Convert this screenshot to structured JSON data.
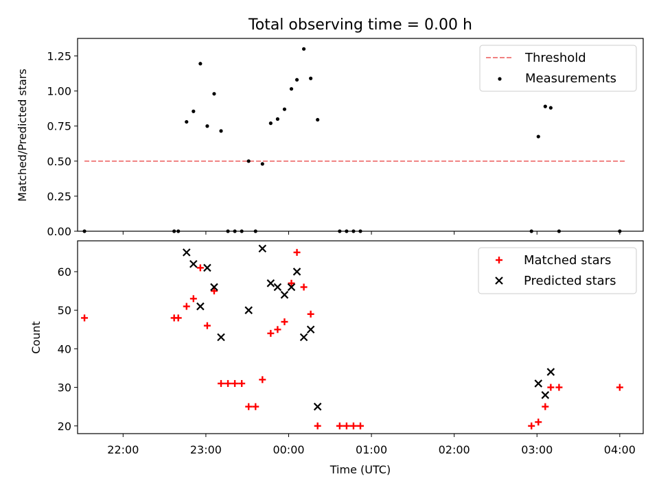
{
  "chart_data": [
    {
      "type": "scatter",
      "title": "Total observing time = 0.00 h",
      "xlabel": "",
      "ylabel": "Matched/Predicted stars",
      "xlim": [
        "21:27",
        "04:17"
      ],
      "ylim": [
        0,
        1.375
      ],
      "yticks": [
        "0.00",
        "0.25",
        "0.50",
        "0.75",
        "1.00",
        "1.25"
      ],
      "ytick_values": [
        0,
        0.25,
        0.5,
        0.75,
        1.0,
        1.25
      ],
      "xtick_values": [
        "22:00",
        "23:00",
        "00:00",
        "01:00",
        "02:00",
        "03:00",
        "04:00"
      ],
      "legend_position": "top-right",
      "colors": {
        "threshold": "#f08080",
        "measurements": "#000000"
      },
      "series": [
        {
          "name": "Threshold",
          "kind": "dashed-line",
          "x": [
            "21:32",
            "04:05"
          ],
          "y": [
            0.5,
            0.5
          ]
        },
        {
          "name": "Measurements",
          "kind": "dots",
          "points": [
            [
              "21:32",
              0.0
            ],
            [
              "22:37",
              0.0
            ],
            [
              "22:40",
              0.0
            ],
            [
              "22:46",
              0.78
            ],
            [
              "22:51",
              0.855
            ],
            [
              "22:56",
              1.195
            ],
            [
              "23:01",
              0.75
            ],
            [
              "23:06",
              0.98
            ],
            [
              "23:11",
              0.715
            ],
            [
              "23:16",
              0.0
            ],
            [
              "23:21",
              0.0
            ],
            [
              "23:26",
              0.0
            ],
            [
              "23:31",
              0.5
            ],
            [
              "23:36",
              0.0
            ],
            [
              "23:41",
              0.48
            ],
            [
              "23:47",
              0.77
            ],
            [
              "23:52",
              0.8
            ],
            [
              "23:57",
              0.87
            ],
            [
              "00:02",
              1.015
            ],
            [
              "00:06",
              1.08
            ],
            [
              "00:11",
              1.3
            ],
            [
              "00:16",
              1.09
            ],
            [
              "00:21",
              0.795
            ],
            [
              "00:37",
              0.0
            ],
            [
              "00:42",
              0.0
            ],
            [
              "00:47",
              0.0
            ],
            [
              "00:52",
              0.0
            ],
            [
              "02:56",
              0.0
            ],
            [
              "03:01",
              0.675
            ],
            [
              "03:06",
              0.89
            ],
            [
              "03:10",
              0.88
            ],
            [
              "03:16",
              0.0
            ],
            [
              "04:00",
              0.0
            ]
          ]
        }
      ]
    },
    {
      "type": "scatter",
      "title": "",
      "xlabel": "Time (UTC)",
      "ylabel": "Count",
      "xlim": [
        "21:27",
        "04:17"
      ],
      "ylim": [
        18,
        68
      ],
      "yticks": [
        "20",
        "30",
        "40",
        "50",
        "60"
      ],
      "ytick_values": [
        20,
        30,
        40,
        50,
        60
      ],
      "xticks": [
        "22:00",
        "23:00",
        "00:00",
        "01:00",
        "02:00",
        "03:00",
        "04:00"
      ],
      "legend_position": "top-right",
      "colors": {
        "matched": "#ff0000",
        "predicted": "#000000"
      },
      "series": [
        {
          "name": "Matched stars",
          "marker": "plus",
          "points": [
            [
              "21:32",
              48
            ],
            [
              "22:37",
              48
            ],
            [
              "22:40",
              48
            ],
            [
              "22:46",
              51
            ],
            [
              "22:51",
              53
            ],
            [
              "22:56",
              61
            ],
            [
              "23:01",
              46
            ],
            [
              "23:06",
              55
            ],
            [
              "23:11",
              31
            ],
            [
              "23:16",
              31
            ],
            [
              "23:21",
              31
            ],
            [
              "23:26",
              31
            ],
            [
              "23:31",
              25
            ],
            [
              "23:36",
              25
            ],
            [
              "23:41",
              32
            ],
            [
              "23:47",
              44
            ],
            [
              "23:52",
              45
            ],
            [
              "23:57",
              47
            ],
            [
              "00:02",
              57
            ],
            [
              "00:06",
              65
            ],
            [
              "00:11",
              56
            ],
            [
              "00:16",
              49
            ],
            [
              "00:21",
              20
            ],
            [
              "00:37",
              20
            ],
            [
              "00:42",
              20
            ],
            [
              "00:47",
              20
            ],
            [
              "00:52",
              20
            ],
            [
              "02:56",
              20
            ],
            [
              "03:01",
              21
            ],
            [
              "03:06",
              25
            ],
            [
              "03:10",
              30
            ],
            [
              "03:16",
              30
            ],
            [
              "04:00",
              30
            ]
          ]
        },
        {
          "name": "Predicted stars",
          "marker": "x",
          "points": [
            [
              "22:46",
              65
            ],
            [
              "22:51",
              62
            ],
            [
              "22:56",
              51
            ],
            [
              "23:01",
              61
            ],
            [
              "23:06",
              56
            ],
            [
              "23:11",
              43
            ],
            [
              "23:31",
              50
            ],
            [
              "23:41",
              66
            ],
            [
              "23:47",
              57
            ],
            [
              "23:52",
              56
            ],
            [
              "23:57",
              54
            ],
            [
              "00:02",
              56
            ],
            [
              "00:06",
              60
            ],
            [
              "00:11",
              43
            ],
            [
              "00:16",
              45
            ],
            [
              "00:21",
              25
            ],
            [
              "03:01",
              31
            ],
            [
              "03:06",
              28
            ],
            [
              "03:10",
              34
            ]
          ]
        }
      ]
    }
  ]
}
